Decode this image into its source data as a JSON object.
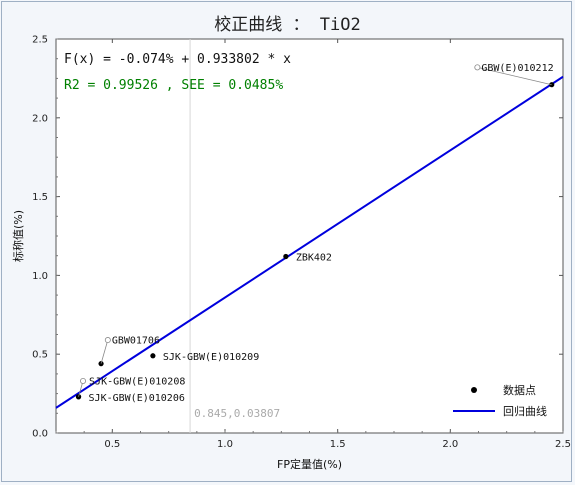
{
  "chart_data": {
    "type": "scatter",
    "title": "校正曲线 ： TiO2",
    "xlabel": "FP定量值(%)",
    "ylabel": "标称值(%)",
    "xlim": [
      0.25,
      2.5
    ],
    "ylim": [
      0,
      2.5
    ],
    "xticks": [
      "0.5",
      "1.0",
      "1.5",
      "2.0",
      "2.5"
    ],
    "yticks": [
      "0.0",
      "0.5",
      "1.0",
      "1.5",
      "2.0",
      "2.5"
    ],
    "equation": "F(x) = -0.074% + 0.933802 * x",
    "stats": "R2 = 0.99526 , SEE = 0.0485%",
    "regression": {
      "intercept": -0.074,
      "slope": 0.933802
    },
    "points": [
      {
        "name": "SJK-GBW(E)010206",
        "x": 0.35,
        "y": 0.23
      },
      {
        "name": "SJK-GBW(E)010208",
        "x": 0.35,
        "y": 0.23
      },
      {
        "name": "GBW01706",
        "x": 0.45,
        "y": 0.44
      },
      {
        "name": "SJK-GBW(E)010209",
        "x": 0.68,
        "y": 0.49
      },
      {
        "name": "ZBK402",
        "x": 1.27,
        "y": 1.12
      },
      {
        "name": "GBW(E)010212",
        "x": 2.45,
        "y": 2.21
      }
    ],
    "cursor": {
      "x": 0.845,
      "label": "0.845,0.03807"
    },
    "legend": {
      "position": "bottom-right",
      "points_label": "数据点",
      "line_label": "回归曲线"
    },
    "colors": {
      "line": "#0000dd",
      "stats": "#008000",
      "points": "#000000"
    },
    "grid": false
  }
}
